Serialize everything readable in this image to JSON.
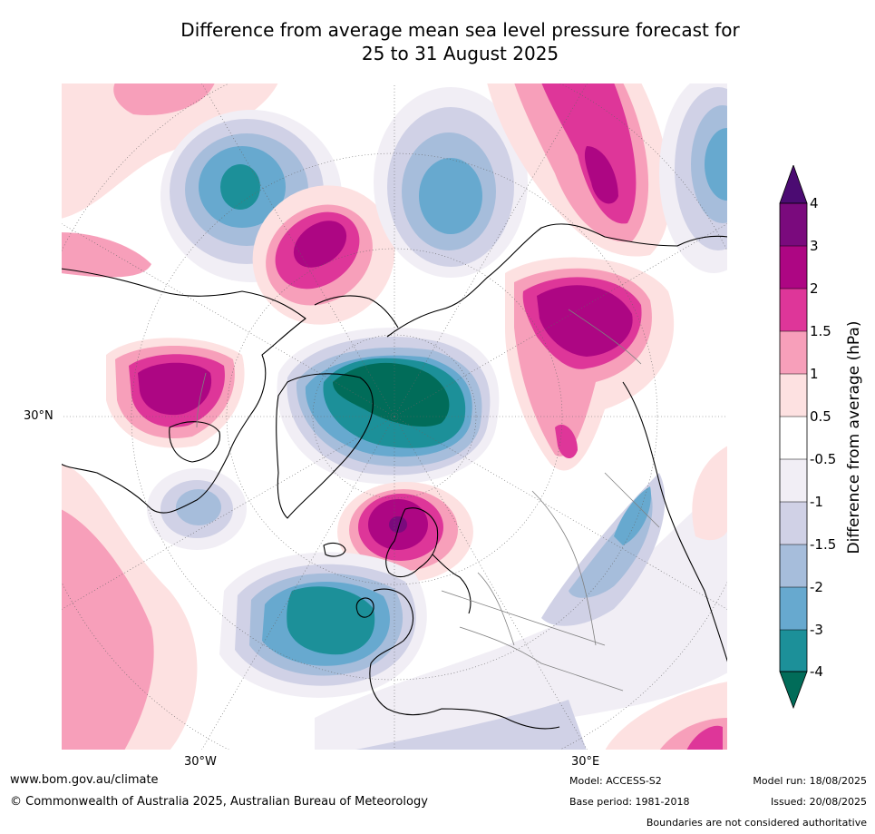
{
  "title_line1": "Difference from average mean sea level pressure forecast for",
  "title_line2": "25 to 31 August 2025",
  "map": {
    "projection": "north-polar-stereographic",
    "lat_label": "30°N",
    "lon_labels": {
      "west": "30°W",
      "east": "30°E"
    },
    "land_outline_color": "#000000",
    "border_color": "#808080",
    "graticule_color": "#666666"
  },
  "colorbar": {
    "title": "Difference from average (hPa)",
    "ticks": [
      "4",
      "3",
      "2",
      "1.5",
      "1",
      "0.5",
      "-0.5",
      "-1",
      "-1.5",
      "-2",
      "-3",
      "-4"
    ],
    "colors": {
      "above_4": "#4b0b72",
      "3_to_4": "#7a0a7d",
      "2_to_3": "#ad0683",
      "1.5_to_2": "#de3699",
      "1_to_1.5": "#f79fba",
      "0.5_to_1": "#fde1e1",
      "-0.5_to_0.5": "#ffffff",
      "-1_to_-0.5": "#f1eef5",
      "-1.5_to_-1": "#d0d1e6",
      "-2_to_-1.5": "#a6bddb",
      "-3_to_-2": "#67a9cf",
      "-4_to_-3": "#1c9099",
      "below_-4": "#016c59"
    }
  },
  "footer": {
    "url": "www.bom.gov.au/climate",
    "copyright": "© Commonwealth of Australia 2025, Australian Bureau of Meteorology",
    "model": "Model: ACCESS-S2",
    "base_period": "Base period: 1981-2018",
    "model_run": "Model run: 18/08/2025",
    "issued": "Issued: 20/08/2025",
    "disclaimer": "Boundaries are not considered authoritative"
  }
}
